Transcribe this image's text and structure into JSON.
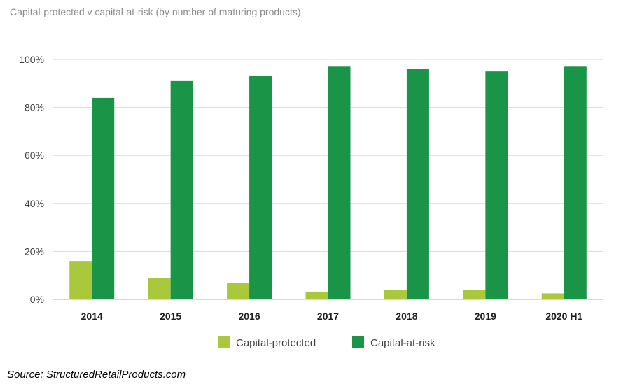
{
  "title": "Capital-protected v capital-at-risk (by number of maturing products)",
  "source": "Source: StructuredRetailProducts.com",
  "colors": {
    "capital_protected": "#a9c83c",
    "capital_at_risk": "#1a9447",
    "grid": "#d9d9d9",
    "axis": "#b3b3b3",
    "tick_text": "#404040",
    "category_text": "#1f1f1f"
  },
  "chart_data": {
    "type": "bar",
    "categories": [
      "2014",
      "2015",
      "2016",
      "2017",
      "2018",
      "2019",
      "2020 H1"
    ],
    "series": [
      {
        "name": "Capital-protected",
        "values": [
          16,
          9,
          7,
          3,
          4,
          4,
          2.5
        ]
      },
      {
        "name": "Capital-at-risk",
        "values": [
          84,
          91,
          93,
          97,
          96,
          95,
          97
        ]
      }
    ],
    "yticks": [
      "0%",
      "20%",
      "40%",
      "60%",
      "80%",
      "100%"
    ],
    "ylim": [
      0,
      100
    ],
    "grid": true,
    "legend": "bottom-center"
  }
}
